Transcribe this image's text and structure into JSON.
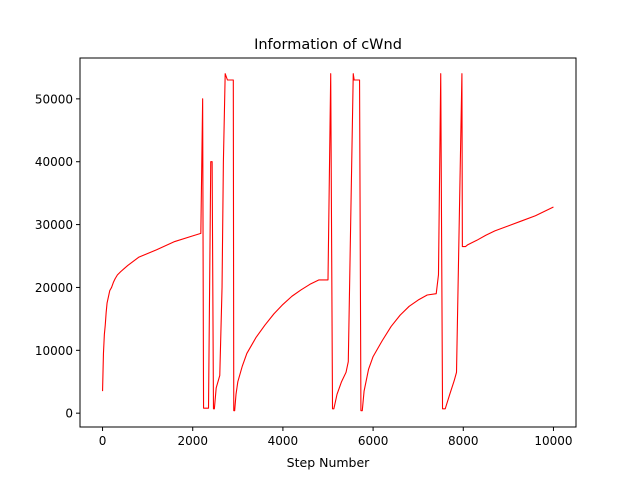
{
  "chart_data": {
    "type": "line",
    "title": "Information of cWnd",
    "xlabel": "Step Number",
    "ylabel": "",
    "xlim": [
      -500,
      10500
    ],
    "ylim": [
      -2200,
      56500
    ],
    "xticks": [
      0,
      2000,
      4000,
      6000,
      8000,
      10000
    ],
    "yticks": [
      0,
      10000,
      20000,
      30000,
      40000,
      50000
    ],
    "grid": false,
    "legend": "none",
    "series": [
      {
        "color": "#ff0000",
        "x": [
          0,
          20,
          40,
          60,
          80,
          100,
          130,
          160,
          200,
          240,
          280,
          330,
          400,
          480,
          560,
          800,
          1200,
          1600,
          2000,
          2180,
          2220,
          2240,
          2280,
          2300,
          2350,
          2400,
          2430,
          2460,
          2480,
          2520,
          2600,
          2650,
          2680,
          2720,
          2770,
          2780,
          2800,
          2900,
          2910,
          2930,
          2960,
          3000,
          3100,
          3200,
          3400,
          3600,
          3800,
          4000,
          4200,
          4400,
          4600,
          4800,
          5000,
          5060,
          5100,
          5130,
          5200,
          5300,
          5400,
          5450,
          5560,
          5580,
          5600,
          5620,
          5700,
          5730,
          5760,
          5800,
          5900,
          6000,
          6200,
          6400,
          6600,
          6800,
          7000,
          7200,
          7400,
          7450,
          7500,
          7540,
          7560,
          7600,
          7700,
          7800,
          7850,
          7970,
          7980,
          8000,
          8050,
          8100,
          8300,
          8500,
          8700,
          9000,
          9300,
          9600,
          10000
        ],
        "y": [
          3500,
          9500,
          12500,
          14000,
          16000,
          17500,
          18500,
          19500,
          20000,
          20800,
          21400,
          22000,
          22500,
          23000,
          23500,
          24800,
          26000,
          27300,
          28200,
          28600,
          50000,
          800,
          800,
          800,
          800,
          40000,
          40000,
          700,
          700,
          4000,
          6000,
          20000,
          40000,
          54000,
          53000,
          53000,
          53000,
          53000,
          400,
          400,
          3000,
          5000,
          7500,
          9500,
          12000,
          14000,
          15800,
          17300,
          18600,
          19600,
          20500,
          21200,
          21200,
          54000,
          700,
          700,
          3000,
          5000,
          6500,
          8200,
          54000,
          53000,
          53000,
          53000,
          53000,
          400,
          400,
          3500,
          7000,
          9000,
          11500,
          13800,
          15600,
          17000,
          18000,
          18800,
          19000,
          22000,
          54000,
          700,
          700,
          700,
          3000,
          5200,
          6500,
          54000,
          26500,
          26500,
          26500,
          26800,
          27500,
          28300,
          29000,
          29800,
          30600,
          31400,
          32800
        ]
      }
    ]
  }
}
